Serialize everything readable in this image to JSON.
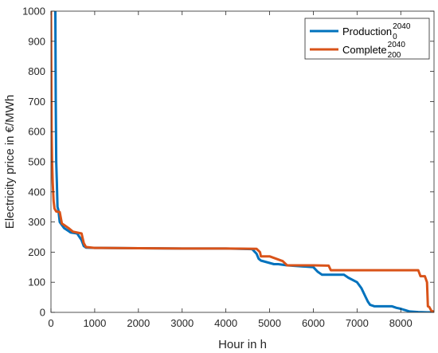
{
  "chart_data": {
    "type": "line",
    "xlabel": "Hour in h",
    "ylabel": "Electricity price in €/MWh",
    "xlim": [
      0,
      8760
    ],
    "ylim": [
      0,
      1000
    ],
    "xticks": [
      0,
      1000,
      2000,
      3000,
      4000,
      5000,
      6000,
      7000,
      8000
    ],
    "yticks": [
      0,
      100,
      200,
      300,
      400,
      500,
      600,
      700,
      800,
      900,
      1000
    ],
    "grid": false,
    "legend_position": "top-right",
    "series": [
      {
        "name": "Production",
        "name_sup": "2040",
        "name_sub": "0",
        "color": "#0072BD",
        "x": [
          100,
          110,
          120,
          135,
          150,
          170,
          200,
          250,
          300,
          400,
          450,
          600,
          700,
          750,
          800,
          1000,
          2000,
          3000,
          4000,
          4600,
          4700,
          4750,
          4800,
          5100,
          5200,
          5400,
          6000,
          6100,
          6200,
          6700,
          6800,
          7000,
          7100,
          7200,
          7250,
          7300,
          7400,
          7500,
          7800,
          7900,
          8000,
          8200,
          8300,
          8400,
          8600,
          8760
        ],
        "y": [
          1000,
          700,
          500,
          430,
          350,
          340,
          300,
          290,
          280,
          270,
          265,
          262,
          240,
          220,
          215,
          214,
          213,
          212,
          212,
          210,
          195,
          178,
          172,
          160,
          160,
          156,
          150,
          135,
          125,
          125,
          115,
          100,
          80,
          50,
          35,
          25,
          20,
          20,
          20,
          15,
          12,
          3,
          2,
          1,
          0,
          0
        ]
      },
      {
        "name": "Complete",
        "name_sup": "2040",
        "name_sub": "200",
        "color": "#D95319",
        "x": [
          0,
          15,
          25,
          40,
          60,
          80,
          120,
          200,
          250,
          300,
          400,
          500,
          700,
          750,
          800,
          1000,
          2000,
          3000,
          4000,
          4700,
          4780,
          4800,
          5000,
          5300,
          5400,
          6000,
          6350,
          6400,
          7000,
          8000,
          8400,
          8450,
          8550,
          8600,
          8620,
          8650,
          8700,
          8760
        ],
        "y": [
          1000,
          600,
          500,
          430,
          370,
          345,
          335,
          333,
          295,
          290,
          280,
          268,
          262,
          230,
          217,
          214,
          213,
          212,
          212,
          211,
          200,
          186,
          186,
          170,
          156,
          156,
          155,
          140,
          140,
          140,
          140,
          120,
          120,
          100,
          20,
          18,
          5,
          2
        ]
      }
    ]
  }
}
